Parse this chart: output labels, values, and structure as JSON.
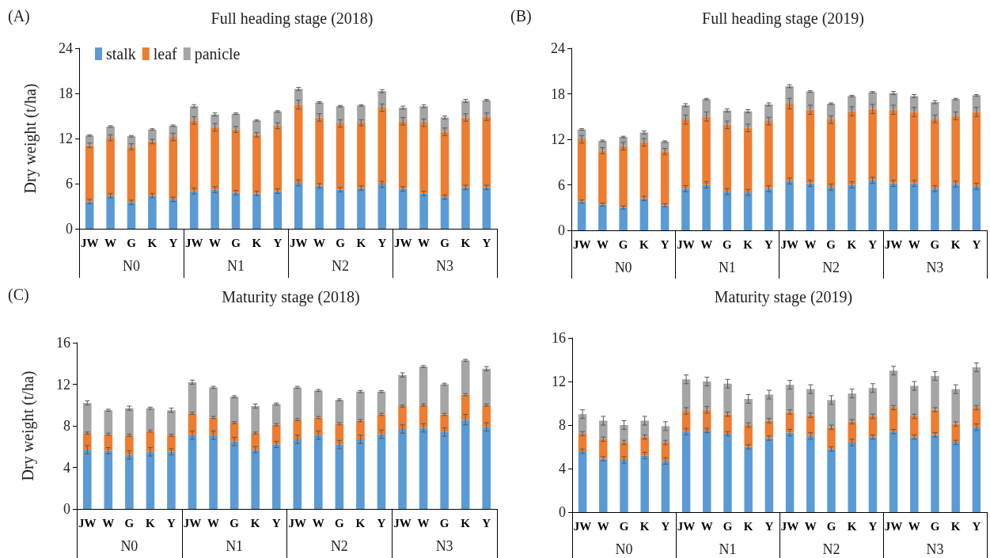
{
  "chart_data": [
    {
      "type": "bar",
      "stacked": true,
      "title": "Full heading stage (2018)",
      "ylabel": "Dry weight (t/ha)",
      "annotations": [
        "(A)",
        "N0",
        "N1",
        "N2",
        "N3"
      ],
      "categories": [
        "JW",
        "W",
        "G",
        "K",
        "Y",
        "JW",
        "W",
        "G",
        "K",
        "Y",
        "JW",
        "W",
        "G",
        "K",
        "Y",
        "JW",
        "W",
        "G",
        "K",
        "Y"
      ],
      "ylim": [
        0,
        24
      ],
      "yticks": [
        0,
        6,
        12,
        18,
        24
      ],
      "grid": false,
      "legend": "top left",
      "series": [
        {
          "name": "stalk",
          "color": "#5b9bd5",
          "values": [
            3.6,
            4.4,
            3.5,
            4.4,
            3.9,
            5.0,
            5.2,
            4.8,
            4.7,
            5.0,
            6.1,
            5.7,
            5.2,
            5.4,
            5.9,
            5.3,
            4.7,
            4.2,
            5.5,
            5.5
          ],
          "errors": [
            0.3,
            0.3,
            0.3,
            0.3,
            0.3,
            0.4,
            0.4,
            0.3,
            0.3,
            0.3,
            0.4,
            0.3,
            0.3,
            0.3,
            0.4,
            0.3,
            0.3,
            0.3,
            0.3,
            0.3
          ]
        },
        {
          "name": "leaf",
          "color": "#ed7d31",
          "values": [
            7.5,
            7.7,
            7.4,
            7.2,
            8.3,
            9.4,
            8.3,
            8.4,
            7.8,
            8.7,
            10.4,
            9.1,
            8.8,
            8.7,
            10.2,
            9.0,
            9.4,
            8.7,
            9.3,
            9.4
          ],
          "errors": [
            0.3,
            0.4,
            0.4,
            0.3,
            0.5,
            0.5,
            0.5,
            0.4,
            0.3,
            0.4,
            0.6,
            0.5,
            0.5,
            0.4,
            0.5,
            0.5,
            0.5,
            0.5,
            0.5,
            0.5
          ]
        },
        {
          "name": "panicle",
          "color": "#a5a5a5",
          "values": [
            1.3,
            1.5,
            1.4,
            1.6,
            1.5,
            1.9,
            1.7,
            2.1,
            1.9,
            1.9,
            2.1,
            2.0,
            2.3,
            2.3,
            2.2,
            1.8,
            2.2,
            1.9,
            2.2,
            2.2
          ],
          "errors": [
            0.1,
            0.1,
            0.1,
            0.1,
            0.1,
            0.2,
            0.2,
            0.1,
            0.1,
            0.1,
            0.2,
            0.1,
            0.1,
            0.1,
            0.2,
            0.2,
            0.2,
            0.2,
            0.2,
            0.1
          ]
        }
      ]
    },
    {
      "type": "bar",
      "stacked": true,
      "title": "Full heading stage (2019)",
      "annotations": [
        "(B)",
        "N0",
        "N1",
        "N2",
        "N3"
      ],
      "categories": [
        "JW",
        "W",
        "G",
        "K",
        "Y",
        "JW",
        "W",
        "G",
        "K",
        "Y",
        "JW",
        "W",
        "G",
        "K",
        "Y",
        "JW",
        "W",
        "G",
        "K",
        "Y"
      ],
      "ylim": [
        0,
        24
      ],
      "yticks": [
        0,
        6,
        12,
        18,
        24
      ],
      "grid": false,
      "series": [
        {
          "color": "#5b9bd5",
          "values": [
            3.8,
            3.4,
            3.0,
            4.2,
            3.3,
            5.5,
            6.0,
            5.1,
            5.0,
            5.5,
            6.5,
            6.2,
            5.7,
            6.0,
            6.6,
            6.2,
            6.2,
            5.5,
            6.1,
            5.8
          ],
          "errors": [
            0.2,
            0.2,
            0.2,
            0.3,
            0.2,
            0.4,
            0.4,
            0.4,
            0.4,
            0.4,
            0.4,
            0.4,
            0.4,
            0.4,
            0.4,
            0.4,
            0.4,
            0.4,
            0.4,
            0.4
          ]
        },
        {
          "color": "#ed7d31",
          "values": [
            8.2,
            7.1,
            8.1,
            7.4,
            7.1,
            9.1,
            9.0,
            8.8,
            8.5,
            8.9,
            10.2,
            9.7,
            8.9,
            9.7,
            9.4,
            9.7,
            9.4,
            9.2,
            9.0,
            9.8
          ],
          "errors": [
            0.5,
            0.4,
            0.5,
            0.5,
            0.4,
            0.6,
            0.6,
            0.5,
            0.5,
            0.5,
            0.7,
            0.6,
            0.5,
            0.6,
            0.6,
            0.6,
            0.6,
            0.5,
            0.5,
            0.6
          ]
        },
        {
          "color": "#a5a5a5",
          "values": [
            1.3,
            1.3,
            1.2,
            1.3,
            1.3,
            1.9,
            2.3,
            1.9,
            2.2,
            2.2,
            2.3,
            2.4,
            2.1,
            2.0,
            2.2,
            2.2,
            2.1,
            2.2,
            2.2,
            2.2
          ],
          "errors": [
            0.1,
            0.1,
            0.1,
            0.2,
            0.1,
            0.2,
            0.1,
            0.2,
            0.2,
            0.2,
            0.2,
            0.1,
            0.1,
            0.1,
            0.1,
            0.2,
            0.2,
            0.2,
            0.1,
            0.1
          ]
        }
      ]
    },
    {
      "type": "bar",
      "stacked": true,
      "title": "Maturity stage (2018)",
      "ylabel": "Dry weight (t/ha)",
      "annotations": [
        "(C)",
        "N0",
        "N1",
        "N2",
        "N3"
      ],
      "categories": [
        "JW",
        "W",
        "G",
        "K",
        "Y",
        "JW",
        "W",
        "G",
        "K",
        "Y",
        "JW",
        "W",
        "G",
        "K",
        "Y",
        "JW",
        "W",
        "G",
        "K",
        "Y"
      ],
      "ylim": [
        0,
        16
      ],
      "yticks": [
        0,
        4,
        8,
        12,
        16
      ],
      "grid": false,
      "series": [
        {
          "color": "#5b9bd5",
          "values": [
            5.7,
            5.6,
            5.2,
            5.5,
            5.5,
            7.1,
            7.1,
            6.5,
            5.7,
            6.2,
            6.7,
            7.1,
            6.2,
            6.7,
            7.2,
            7.7,
            7.8,
            7.4,
            8.6,
            7.9
          ],
          "errors": [
            0.4,
            0.3,
            0.4,
            0.4,
            0.3,
            0.4,
            0.4,
            0.4,
            0.3,
            0.3,
            0.4,
            0.4,
            0.4,
            0.4,
            0.4,
            0.4,
            0.4,
            0.4,
            0.5,
            0.4
          ]
        },
        {
          "color": "#ed7d31",
          "values": [
            1.6,
            1.6,
            1.9,
            2.0,
            1.6,
            2.1,
            1.7,
            1.8,
            1.6,
            1.9,
            1.9,
            1.7,
            2.0,
            1.8,
            1.9,
            2.2,
            2.2,
            1.7,
            2.4,
            2.1
          ],
          "errors": [
            0.1,
            0.1,
            0.1,
            0.1,
            0.1,
            0.1,
            0.1,
            0.1,
            0.1,
            0.1,
            0.1,
            0.1,
            0.1,
            0.1,
            0.1,
            0.1,
            0.1,
            0.1,
            0.1,
            0.1
          ]
        },
        {
          "color": "#a5a5a5",
          "values": [
            2.9,
            2.3,
            2.6,
            2.2,
            2.4,
            3.0,
            2.9,
            2.5,
            2.6,
            2.0,
            3.1,
            2.6,
            2.3,
            2.8,
            2.2,
            3.0,
            3.7,
            2.9,
            3.3,
            3.5
          ],
          "errors": [
            0.2,
            0.1,
            0.2,
            0.1,
            0.2,
            0.2,
            0.1,
            0.1,
            0.2,
            0.1,
            0.1,
            0.1,
            0.1,
            0.1,
            0.1,
            0.2,
            0.1,
            0.1,
            0.1,
            0.2
          ]
        }
      ]
    },
    {
      "type": "bar",
      "stacked": true,
      "title": "Maturity stage (2019)",
      "annotations": [
        "N0",
        "N1",
        "N2",
        "N3"
      ],
      "categories": [
        "JW",
        "W",
        "G",
        "K",
        "Y",
        "JW",
        "W",
        "G",
        "K",
        "Y",
        "JW",
        "W",
        "G",
        "K",
        "Y",
        "JW",
        "W",
        "G",
        "K",
        "Y"
      ],
      "ylim": [
        0,
        16
      ],
      "yticks": [
        0,
        4,
        8,
        12,
        16
      ],
      "grid": false,
      "series": [
        {
          "color": "#5b9bd5",
          "values": [
            5.6,
            4.9,
            4.8,
            5.2,
            4.7,
            7.4,
            7.5,
            7.2,
            6.0,
            6.8,
            7.3,
            7.0,
            5.8,
            6.4,
            6.9,
            7.4,
            6.9,
            7.1,
            6.4,
            7.8
          ],
          "errors": [
            0.2,
            0.2,
            0.3,
            0.3,
            0.3,
            0.3,
            0.2,
            0.2,
            0.2,
            0.2,
            0.3,
            0.3,
            0.2,
            0.3,
            0.2,
            0.2,
            0.2,
            0.2,
            0.2,
            0.3
          ]
        },
        {
          "color": "#ed7d31",
          "values": [
            1.6,
            1.8,
            1.6,
            1.7,
            1.7,
            1.9,
            1.9,
            1.8,
            2.0,
            1.6,
            1.9,
            1.9,
            2.0,
            1.9,
            1.9,
            2.2,
            1.9,
            2.3,
            1.7,
            1.8
          ],
          "errors": [
            0.2,
            0.2,
            0.2,
            0.2,
            0.2,
            0.3,
            0.3,
            0.2,
            0.2,
            0.2,
            0.2,
            0.2,
            0.2,
            0.2,
            0.2,
            0.2,
            0.2,
            0.2,
            0.2,
            0.2
          ]
        },
        {
          "color": "#a5a5a5",
          "values": [
            1.8,
            1.7,
            1.6,
            1.5,
            1.5,
            2.9,
            2.6,
            2.8,
            2.4,
            2.4,
            2.5,
            2.4,
            2.5,
            2.6,
            2.6,
            3.4,
            2.8,
            3.1,
            3.2,
            3.7
          ],
          "errors": [
            0.4,
            0.4,
            0.4,
            0.4,
            0.4,
            0.4,
            0.4,
            0.4,
            0.4,
            0.4,
            0.4,
            0.4,
            0.4,
            0.4,
            0.4,
            0.4,
            0.4,
            0.4,
            0.4,
            0.4
          ]
        }
      ]
    }
  ]
}
